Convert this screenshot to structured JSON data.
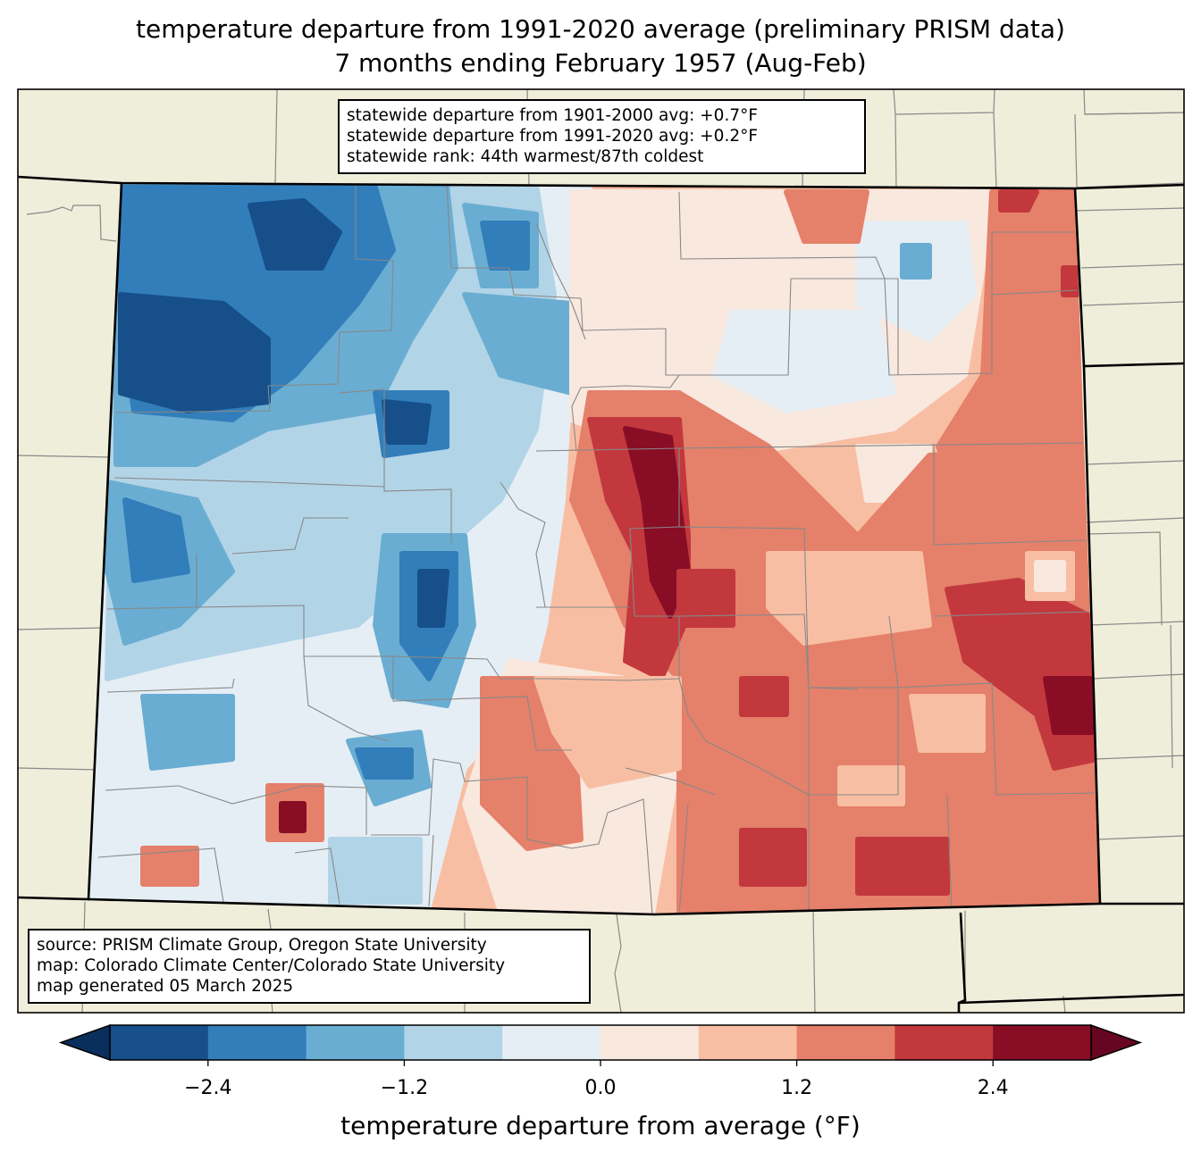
{
  "title": {
    "line1": "temperature departure from 1991-2020 average (preliminary PRISM data)",
    "line2": "7 months ending February 1957 (Aug-Feb)"
  },
  "stats_box": {
    "line1": "statewide departure from 1901-2000 avg: +0.7°F",
    "line2": "statewide departure from 1991-2020 avg: +0.2°F",
    "line3": "statewide rank: 44th warmest/87th coldest"
  },
  "source_box": {
    "line1": "source: PRISM Climate Group, Oregon State University",
    "line2": "map: Colorado Climate Center/Colorado State University",
    "line3": "map generated 05 March 2025"
  },
  "colorbar": {
    "label": "temperature departure from average (°F)",
    "ticks": [
      "−2.4",
      "−1.2",
      "0.0",
      "1.2",
      "2.4"
    ],
    "tick_values": [
      -2.4,
      -1.2,
      0.0,
      1.2,
      2.4
    ],
    "bounds": [
      -3.0,
      -2.4,
      -1.8,
      -1.2,
      -0.6,
      0.0,
      0.6,
      1.2,
      1.8,
      2.4,
      3.0
    ],
    "colors": [
      "#164f8a",
      "#327ebb",
      "#6aadd2",
      "#b2d4e7",
      "#e5eef4",
      "#f9e8de",
      "#f8bea3",
      "#e5806a",
      "#c2383d",
      "#890d25"
    ],
    "under_color": "#0a2f5c",
    "over_color": "#670622"
  },
  "map_colors": {
    "land": "#efeedb",
    "county_lines": "#888888",
    "state_lines": "#000000"
  }
}
